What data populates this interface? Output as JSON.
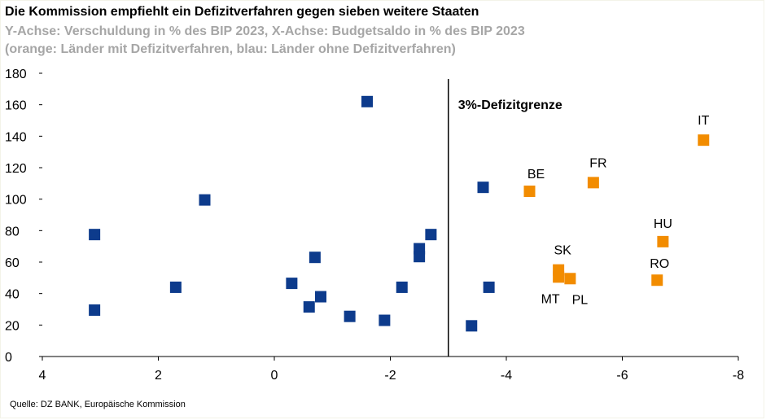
{
  "header": {
    "title": "Die Kommission empfiehlt ein Defizitverfahren gegen sieben weitere Staaten",
    "subtitle_line1": "Y-Achse: Verschuldung in % des BIP 2023, X-Achse: Budgetsaldo in % des BIP 2023",
    "subtitle_line2": "(orange: Länder mit Defizitverfahren, blau: Länder ohne Defizitverfahren)"
  },
  "footer": {
    "source": "Quelle: DZ BANK, Europäische Kommission"
  },
  "colors": {
    "blue": "#0d3b8c",
    "orange": "#f28c00",
    "axis": "#000000"
  },
  "chart_data": {
    "type": "scatter",
    "title": "Die Kommission empfiehlt ein Defizitverfahren gegen sieben weitere Staaten",
    "xlabel": "Budgetsaldo in % des BIP 2023",
    "ylabel": "Verschuldung in % des BIP 2023",
    "xlim": [
      4,
      -8
    ],
    "ylim": [
      0,
      180
    ],
    "x_ticks": [
      4,
      2,
      0,
      -2,
      -4,
      -6,
      -8
    ],
    "y_ticks": [
      0,
      20,
      40,
      60,
      80,
      100,
      120,
      140,
      160,
      180
    ],
    "x_reversed": true,
    "grid": false,
    "reference_line": {
      "x": -3,
      "label": "3%-Defizitgrenze"
    },
    "series": [
      {
        "group": "ohne Defizitverfahren",
        "color": "#0d3b8c",
        "points": [
          {
            "x": 3.1,
            "y": 77.5
          },
          {
            "x": 3.1,
            "y": 29.5
          },
          {
            "x": 1.7,
            "y": 44
          },
          {
            "x": 1.2,
            "y": 99.5
          },
          {
            "x": -0.3,
            "y": 46.5
          },
          {
            "x": -0.6,
            "y": 31.5
          },
          {
            "x": -0.7,
            "y": 63
          },
          {
            "x": -0.8,
            "y": 38
          },
          {
            "x": -1.3,
            "y": 25.5
          },
          {
            "x": -1.6,
            "y": 162
          },
          {
            "x": -1.9,
            "y": 23
          },
          {
            "x": -2.2,
            "y": 44
          },
          {
            "x": -2.5,
            "y": 68.5
          },
          {
            "x": -2.5,
            "y": 63.5
          },
          {
            "x": -2.7,
            "y": 77.5
          },
          {
            "x": -3.4,
            "y": 19.5
          },
          {
            "x": -3.6,
            "y": 107.5
          },
          {
            "x": -3.7,
            "y": 44
          }
        ]
      },
      {
        "group": "mit Defizitverfahren",
        "color": "#f28c00",
        "points": [
          {
            "x": -4.4,
            "y": 105,
            "label": "BE"
          },
          {
            "x": -5.5,
            "y": 110.5,
            "label": "FR"
          },
          {
            "x": -7.4,
            "y": 137.5,
            "label": "IT"
          },
          {
            "x": -6.7,
            "y": 73,
            "label": "HU"
          },
          {
            "x": -6.6,
            "y": 48.5,
            "label": "RO"
          },
          {
            "x": -4.9,
            "y": 55,
            "label": "SK"
          },
          {
            "x": -4.9,
            "y": 50.5,
            "label": "MT"
          },
          {
            "x": -5.1,
            "y": 49.5,
            "label": "PL"
          }
        ]
      }
    ]
  }
}
